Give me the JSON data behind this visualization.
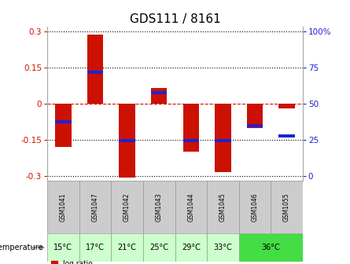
{
  "title": "GDS111 / 8161",
  "samples": [
    "GSM1041",
    "GSM1047",
    "GSM1042",
    "GSM1043",
    "GSM1044",
    "GSM1045",
    "GSM1046",
    "GSM1055"
  ],
  "temp_labels": [
    "15°C",
    "17°C",
    "21°C",
    "25°C",
    "29°C",
    "33°C",
    "36°C"
  ],
  "temp_colors": [
    "#ccffcc",
    "#ccffcc",
    "#ccffcc",
    "#ccffcc",
    "#ccffcc",
    "#ccffcc",
    "#44dd44"
  ],
  "temp_spans": [
    1,
    1,
    1,
    1,
    1,
    1,
    2
  ],
  "log_ratios": [
    -0.18,
    0.285,
    -0.305,
    0.065,
    -0.2,
    -0.285,
    -0.1,
    -0.02
  ],
  "percentile_ranks": [
    -0.075,
    0.13,
    -0.155,
    0.045,
    -0.155,
    -0.155,
    -0.09,
    -0.135
  ],
  "bar_color": "#cc1100",
  "percentile_color": "#2222cc",
  "ylim": [
    -0.32,
    0.32
  ],
  "yticks": [
    -0.3,
    -0.15,
    0,
    0.15,
    0.3
  ],
  "ytick_labels_left": [
    "-0.3",
    "-0.15",
    "0",
    "0.15",
    "0.3"
  ],
  "ytick_labels_right": [
    "0",
    "25",
    "50",
    "75",
    "100%"
  ],
  "left_tick_color": "#cc1100",
  "right_tick_color": "#2222cc",
  "zero_line_color": "#cc1100",
  "bg_label": "#cccccc",
  "bar_width": 0.5,
  "title_fontsize": 11,
  "tick_fontsize": 7.5,
  "gsm_fontsize": 5.5,
  "temp_fontsize": 7
}
